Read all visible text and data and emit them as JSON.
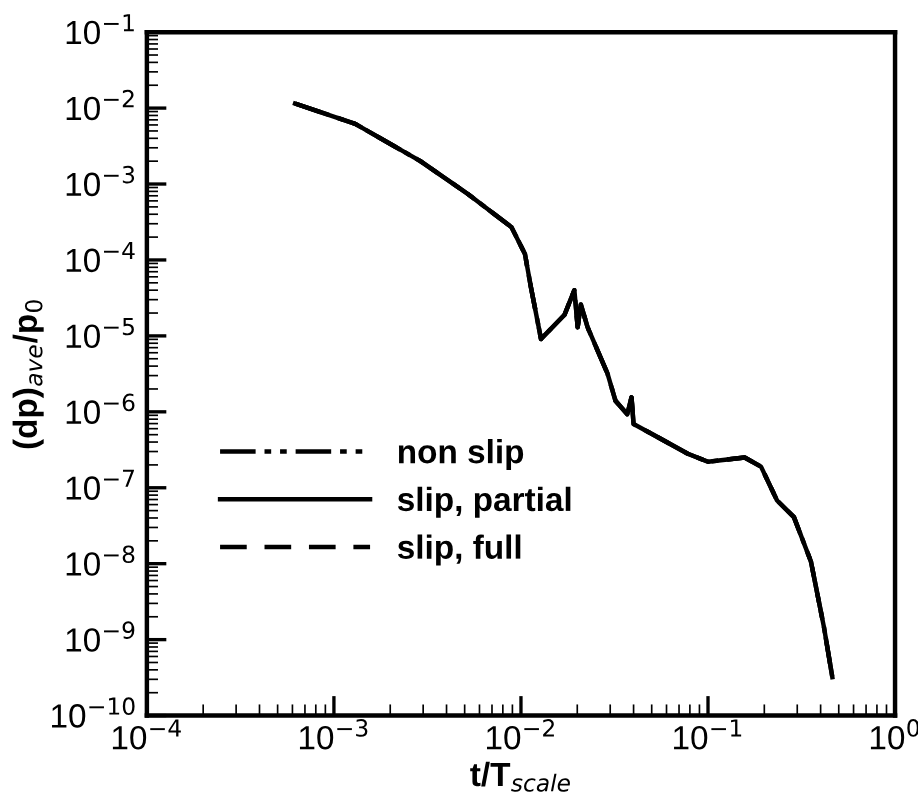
{
  "chart_data": {
    "type": "line",
    "xlabel": "t/T$_{scale}$",
    "ylabel": "(dp)$_{ave}$/p$_{0}$",
    "log": "xy",
    "grid": false,
    "legend": "bottom left",
    "marker": "none",
    "x": [
      0.00062,
      0.0013,
      0.0029,
      0.0052,
      0.0089,
      0.0105,
      0.0113,
      0.0128,
      0.0171,
      0.0193,
      0.0201,
      0.0209,
      0.0227,
      0.029,
      0.032,
      0.037,
      0.039,
      0.04,
      0.051,
      0.078,
      0.1,
      0.157,
      0.192,
      0.234,
      0.288,
      0.355,
      0.417,
      0.462
    ],
    "series": [
      {
        "name": "non slip",
        "color": "#000000",
        "line_style": "dashdotdot",
        "values": [
          0.0115,
          0.0062,
          0.002,
          0.00074,
          0.00027,
          0.00012,
          4.4e-05,
          9.1e-06,
          1.9e-05,
          4e-05,
          1.3e-05,
          2.6e-05,
          1.3e-05,
          3.2e-06,
          1.4e-06,
          9.3e-07,
          1.55e-06,
          6.9e-07,
          5e-07,
          2.8e-07,
          2.2e-07,
          2.5e-07,
          1.9e-07,
          6.8e-08,
          4.1e-08,
          1.07e-08,
          1.45e-09,
          3.2e-10
        ]
      },
      {
        "name": "slip, partial",
        "color": "#000000",
        "line_style": "solid",
        "values": [
          0.0115,
          0.0062,
          0.002,
          0.00074,
          0.00027,
          0.00012,
          4.4e-05,
          9.1e-06,
          1.9e-05,
          4e-05,
          1.3e-05,
          2.6e-05,
          1.3e-05,
          3.2e-06,
          1.4e-06,
          9.3e-07,
          1.55e-06,
          6.9e-07,
          5e-07,
          2.8e-07,
          2.2e-07,
          2.5e-07,
          1.9e-07,
          6.8e-08,
          4.1e-08,
          1.07e-08,
          1.45e-09,
          3.2e-10
        ]
      },
      {
        "name": "slip, full",
        "color": "#000000",
        "line_style": "dashed",
        "values": [
          0.0115,
          0.0062,
          0.002,
          0.00074,
          0.00027,
          0.00012,
          4.4e-05,
          9.1e-06,
          1.9e-05,
          4e-05,
          1.3e-05,
          2.6e-05,
          1.3e-05,
          3.2e-06,
          1.4e-06,
          9.3e-07,
          1.55e-06,
          6.9e-07,
          5e-07,
          2.8e-07,
          2.2e-07,
          2.5e-07,
          1.9e-07,
          6.8e-08,
          4.1e-08,
          1.07e-08,
          1.45e-09,
          3.2e-10
        ]
      }
    ],
    "xlim": [
      0.0001,
      1
    ],
    "xticks": [
      {
        "value": 0.0001,
        "label": "10$^{−4}$"
      },
      {
        "value": 0.001,
        "label": "10$^{−3}$"
      },
      {
        "value": 0.01,
        "label": "10$^{−2}$"
      },
      {
        "value": 0.1,
        "label": "10$^{−1}$"
      },
      {
        "value": 1,
        "label": "10$^{0}$"
      }
    ],
    "ylim": [
      1e-10,
      0.1
    ],
    "yticks": [
      {
        "value": 1e-10,
        "label": "10$^{−10}$"
      },
      {
        "value": 1e-09,
        "label": "10$^{−9}$"
      },
      {
        "value": 1e-08,
        "label": "10$^{−8}$"
      },
      {
        "value": 1e-07,
        "label": "10$^{−7}$"
      },
      {
        "value": 1e-06,
        "label": "10$^{−6}$"
      },
      {
        "value": 1e-05,
        "label": "10$^{−5}$"
      },
      {
        "value": 0.0001,
        "label": "10$^{−4}$"
      },
      {
        "value": 0.001,
        "label": "10$^{−3}$"
      },
      {
        "value": 0.01,
        "label": "10$^{−2}$"
      },
      {
        "value": 0.1,
        "label": "10$^{−1}$"
      }
    ]
  }
}
